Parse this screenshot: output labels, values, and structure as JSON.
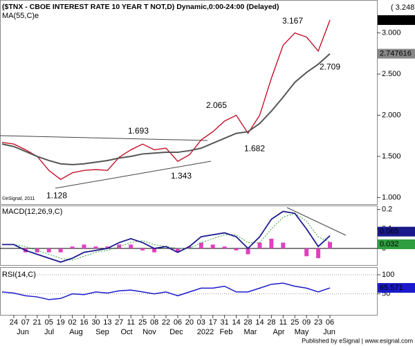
{
  "chart_data": {
    "type": "line",
    "title": "($TNX - CBOE INTEREST RATE 10 YEAR T NOT,D) Dynamic,0:00-24:00 (Delayed)",
    "quote": "( 3.248)",
    "ma_label": "MA(55,C)e",
    "copyright": "©eSignal, 2011",
    "footer": "Published by eSignal | www.esignal.com",
    "categories": [
      null,
      "24",
      "07",
      "21",
      "05",
      "19",
      "02",
      "16",
      "30",
      "13",
      "27",
      "11",
      "25",
      "08",
      "22",
      "06",
      "20",
      "03",
      "17",
      "31",
      "14",
      "28",
      "14",
      "28",
      "11",
      "25",
      "09",
      "23",
      "06"
    ],
    "months": [
      "Jun",
      "Jul",
      "Aug",
      "Sep",
      "Oct",
      "Nov",
      "Dec",
      "2022",
      "Feb",
      "Mar",
      "Apr",
      "May",
      "Jun"
    ],
    "series": [
      {
        "name": "$TNX",
        "color": "#c0001a",
        "values": [
          1.67,
          1.65,
          1.58,
          1.5,
          1.33,
          1.22,
          1.3,
          1.33,
          1.34,
          1.33,
          1.49,
          1.58,
          1.65,
          1.58,
          1.6,
          1.44,
          1.52,
          1.7,
          1.8,
          1.93,
          2.0,
          1.78,
          2.0,
          2.45,
          2.85,
          3.0,
          2.95,
          2.78,
          3.156
        ]
      },
      {
        "name": "MA(55,C)e",
        "color": "#555555",
        "values": [
          1.65,
          1.62,
          1.56,
          1.5,
          1.45,
          1.41,
          1.4,
          1.41,
          1.43,
          1.45,
          1.48,
          1.5,
          1.53,
          1.54,
          1.55,
          1.55,
          1.57,
          1.6,
          1.66,
          1.72,
          1.78,
          1.8,
          1.9,
          2.05,
          2.22,
          2.4,
          2.52,
          2.62,
          2.747616
        ]
      }
    ],
    "annotations": [
      3.167,
      2.065,
      1.693,
      2.709,
      1.682,
      1.343,
      1.128
    ],
    "ylim": [
      0.92,
      3.4
    ],
    "yticks": [
      {
        "value": 1,
        "label": "1.000"
      },
      {
        "value": 1.5,
        "label": "1.500"
      },
      {
        "value": 2,
        "label": "2.000"
      },
      {
        "value": 2.5,
        "label": "2.500"
      },
      {
        "value": 3,
        "label": "3.000"
      }
    ],
    "macd": {
      "title": "MACD(12,26,9,C)",
      "ylim": [
        -0.085,
        0.22
      ],
      "yticks": [
        0,
        0.1,
        0.2
      ],
      "series": [
        {
          "name": "MACD",
          "color": "#1a1a8c",
          "values": [
            0.02,
            0.02,
            -0.01,
            -0.03,
            -0.05,
            -0.07,
            -0.05,
            -0.02,
            -0.01,
            0.0,
            0.03,
            0.05,
            0.03,
            0.0,
            0.01,
            -0.02,
            0.01,
            0.06,
            0.07,
            0.08,
            0.06,
            0.0,
            0.06,
            0.15,
            0.19,
            0.18,
            0.1,
            0.01,
            0.065
          ]
        },
        {
          "name": "Signal",
          "color": "#2e9e3e",
          "values": [
            0.02,
            0.02,
            0.01,
            -0.01,
            -0.03,
            -0.05,
            -0.06,
            -0.04,
            -0.02,
            -0.01,
            0.01,
            0.03,
            0.04,
            0.02,
            0.01,
            0.0,
            0.0,
            0.03,
            0.05,
            0.07,
            0.07,
            0.03,
            0.03,
            0.1,
            0.16,
            0.18,
            0.14,
            0.06,
            0.032
          ]
        },
        {
          "name": "Histogram",
          "color": "#e040c0",
          "values": [
            0,
            0,
            -0.02,
            -0.02,
            -0.02,
            -0.02,
            0.01,
            0.02,
            0.01,
            0.01,
            0.02,
            0.02,
            -0.01,
            -0.02,
            0,
            -0.02,
            0.01,
            0.03,
            0.02,
            0.01,
            -0.01,
            -0.03,
            0.03,
            0.05,
            0.03,
            0,
            -0.04,
            -0.05,
            0.033
          ]
        }
      ]
    },
    "rsi": {
      "title": "RSI(14,C)",
      "ylim": [
        -5,
        120
      ],
      "yticks": [
        50,
        100
      ],
      "series": [
        {
          "name": "RSI",
          "color": "#1a1acc",
          "values": [
            55,
            52,
            45,
            42,
            35,
            38,
            50,
            48,
            55,
            52,
            58,
            60,
            55,
            50,
            55,
            45,
            55,
            65,
            65,
            70,
            55,
            55,
            65,
            75,
            78,
            70,
            65,
            55,
            65.571
          ]
        }
      ]
    }
  }
}
